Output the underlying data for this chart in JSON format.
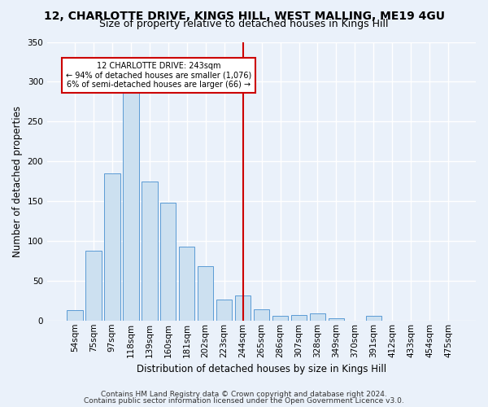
{
  "title1": "12, CHARLOTTE DRIVE, KINGS HILL, WEST MALLING, ME19 4GU",
  "title2": "Size of property relative to detached houses in Kings Hill",
  "xlabel": "Distribution of detached houses by size in Kings Hill",
  "ylabel": "Number of detached properties",
  "bar_labels": [
    "54sqm",
    "75sqm",
    "97sqm",
    "118sqm",
    "139sqm",
    "160sqm",
    "181sqm",
    "202sqm",
    "223sqm",
    "244sqm",
    "265sqm",
    "286sqm",
    "307sqm",
    "328sqm",
    "349sqm",
    "370sqm",
    "391sqm",
    "412sqm",
    "433sqm",
    "454sqm",
    "475sqm"
  ],
  "bar_heights": [
    13,
    88,
    185,
    288,
    175,
    148,
    93,
    68,
    26,
    31,
    14,
    6,
    7,
    9,
    3,
    0,
    6,
    0,
    0,
    0,
    0
  ],
  "bar_color": "#cce0f0",
  "bar_edge_color": "#5b9bd5",
  "vline_color": "#cc0000",
  "annotation_text": "12 CHARLOTTE DRIVE: 243sqm\n← 94% of detached houses are smaller (1,076)\n6% of semi-detached houses are larger (66) →",
  "annotation_box_color": "#ffffff",
  "annotation_box_edge": "#cc0000",
  "ylim": [
    0,
    350
  ],
  "yticks": [
    0,
    50,
    100,
    150,
    200,
    250,
    300,
    350
  ],
  "footer1": "Contains HM Land Registry data © Crown copyright and database right 2024.",
  "footer2": "Contains public sector information licensed under the Open Government Licence v3.0.",
  "bg_color": "#eaf1fa",
  "plot_bg_color": "#eaf1fa",
  "grid_color": "#ffffff",
  "title1_fontsize": 10,
  "title2_fontsize": 9,
  "xlabel_fontsize": 8.5,
  "ylabel_fontsize": 8.5,
  "footer_fontsize": 6.5,
  "tick_fontsize": 7.5,
  "annot_fontsize": 7.0
}
